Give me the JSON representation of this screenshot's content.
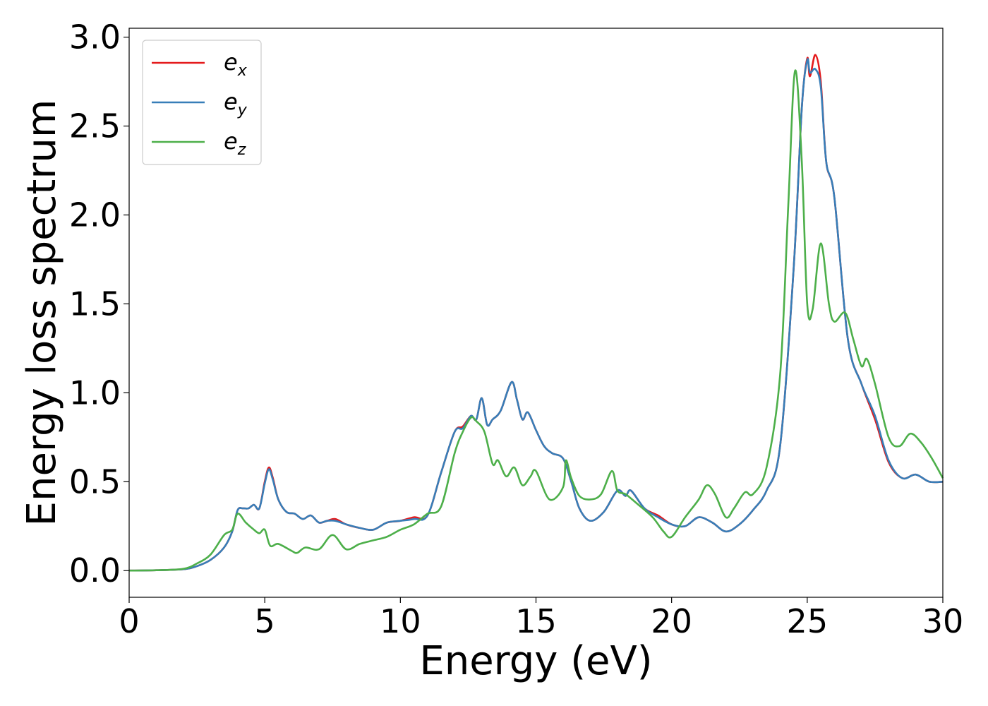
{
  "chart_data": {
    "type": "line",
    "title": "",
    "xlabel": "Energy (eV)",
    "ylabel": "Energy loss spectrum",
    "xlim": [
      0,
      30
    ],
    "ylim": [
      -0.15,
      3.05
    ],
    "xticks": [
      0,
      5,
      10,
      15,
      20,
      25,
      30
    ],
    "xtick_labels": [
      "0",
      "5",
      "10",
      "15",
      "20",
      "25",
      "30"
    ],
    "yticks": [
      0.0,
      0.5,
      1.0,
      1.5,
      2.0,
      2.5,
      3.0
    ],
    "ytick_labels": [
      "0.0",
      "0.5",
      "1.0",
      "1.5",
      "2.0",
      "2.5",
      "3.0"
    ],
    "grid": false,
    "legend_position": "top-left",
    "series": [
      {
        "name": "e_x",
        "legend_main": "e",
        "legend_sub": "x",
        "color": "#e41a1c",
        "points": [
          [
            0,
            0
          ],
          [
            1,
            0.002
          ],
          [
            2,
            0.008
          ],
          [
            2.5,
            0.025
          ],
          [
            3,
            0.06
          ],
          [
            3.5,
            0.13
          ],
          [
            3.8,
            0.22
          ],
          [
            4,
            0.34
          ],
          [
            4.2,
            0.35
          ],
          [
            4.4,
            0.35
          ],
          [
            4.6,
            0.37
          ],
          [
            4.8,
            0.35
          ],
          [
            5,
            0.5
          ],
          [
            5.15,
            0.58
          ],
          [
            5.3,
            0.52
          ],
          [
            5.5,
            0.4
          ],
          [
            5.8,
            0.33
          ],
          [
            6.1,
            0.32
          ],
          [
            6.4,
            0.29
          ],
          [
            6.7,
            0.31
          ],
          [
            7,
            0.27
          ],
          [
            7.3,
            0.28
          ],
          [
            7.6,
            0.29
          ],
          [
            8,
            0.26
          ],
          [
            8.5,
            0.24
          ],
          [
            9,
            0.23
          ],
          [
            9.5,
            0.27
          ],
          [
            10,
            0.28
          ],
          [
            10.5,
            0.3
          ],
          [
            11,
            0.31
          ],
          [
            11.5,
            0.55
          ],
          [
            12,
            0.78
          ],
          [
            12.3,
            0.81
          ],
          [
            12.6,
            0.87
          ],
          [
            12.8,
            0.85
          ],
          [
            13,
            0.97
          ],
          [
            13.2,
            0.82
          ],
          [
            13.4,
            0.85
          ],
          [
            13.7,
            0.9
          ],
          [
            14.1,
            1.06
          ],
          [
            14.3,
            0.96
          ],
          [
            14.5,
            0.85
          ],
          [
            14.7,
            0.89
          ],
          [
            15,
            0.79
          ],
          [
            15.3,
            0.7
          ],
          [
            15.6,
            0.66
          ],
          [
            16,
            0.63
          ],
          [
            16.3,
            0.5
          ],
          [
            16.6,
            0.35
          ],
          [
            17,
            0.28
          ],
          [
            17.5,
            0.33
          ],
          [
            18,
            0.45
          ],
          [
            18.3,
            0.42
          ],
          [
            18.5,
            0.45
          ],
          [
            19,
            0.35
          ],
          [
            19.5,
            0.31
          ],
          [
            20,
            0.26
          ],
          [
            20.5,
            0.25
          ],
          [
            21,
            0.3
          ],
          [
            21.5,
            0.27
          ],
          [
            22,
            0.22
          ],
          [
            22.5,
            0.26
          ],
          [
            23,
            0.34
          ],
          [
            23.5,
            0.45
          ],
          [
            24,
            0.7
          ],
          [
            24.5,
            1.7
          ],
          [
            24.8,
            2.6
          ],
          [
            25,
            2.88
          ],
          [
            25.1,
            2.78
          ],
          [
            25.3,
            2.9
          ],
          [
            25.5,
            2.75
          ],
          [
            25.7,
            2.3
          ],
          [
            26,
            2.1
          ],
          [
            26.5,
            1.3
          ],
          [
            27,
            1.05
          ],
          [
            27.5,
            0.85
          ],
          [
            28,
            0.61
          ],
          [
            28.5,
            0.52
          ],
          [
            29,
            0.54
          ],
          [
            29.5,
            0.5
          ],
          [
            30,
            0.5
          ]
        ]
      },
      {
        "name": "e_y",
        "legend_main": "e",
        "legend_sub": "y",
        "color": "#377eb8",
        "points": [
          [
            0,
            0
          ],
          [
            1,
            0.002
          ],
          [
            2,
            0.008
          ],
          [
            2.5,
            0.025
          ],
          [
            3,
            0.06
          ],
          [
            3.5,
            0.13
          ],
          [
            3.8,
            0.22
          ],
          [
            4,
            0.34
          ],
          [
            4.2,
            0.35
          ],
          [
            4.4,
            0.35
          ],
          [
            4.6,
            0.37
          ],
          [
            4.8,
            0.35
          ],
          [
            5,
            0.49
          ],
          [
            5.15,
            0.57
          ],
          [
            5.3,
            0.51
          ],
          [
            5.5,
            0.4
          ],
          [
            5.8,
            0.33
          ],
          [
            6.1,
            0.32
          ],
          [
            6.4,
            0.29
          ],
          [
            6.7,
            0.31
          ],
          [
            7,
            0.27
          ],
          [
            7.3,
            0.28
          ],
          [
            7.6,
            0.28
          ],
          [
            8,
            0.26
          ],
          [
            8.5,
            0.24
          ],
          [
            9,
            0.23
          ],
          [
            9.5,
            0.27
          ],
          [
            10,
            0.28
          ],
          [
            10.5,
            0.29
          ],
          [
            11,
            0.31
          ],
          [
            11.5,
            0.55
          ],
          [
            12,
            0.78
          ],
          [
            12.3,
            0.8
          ],
          [
            12.6,
            0.87
          ],
          [
            12.8,
            0.85
          ],
          [
            13,
            0.97
          ],
          [
            13.2,
            0.82
          ],
          [
            13.4,
            0.85
          ],
          [
            13.7,
            0.9
          ],
          [
            14.1,
            1.06
          ],
          [
            14.3,
            0.96
          ],
          [
            14.5,
            0.85
          ],
          [
            14.7,
            0.89
          ],
          [
            15,
            0.79
          ],
          [
            15.3,
            0.7
          ],
          [
            15.6,
            0.66
          ],
          [
            16,
            0.63
          ],
          [
            16.3,
            0.5
          ],
          [
            16.6,
            0.35
          ],
          [
            17,
            0.28
          ],
          [
            17.5,
            0.33
          ],
          [
            18,
            0.45
          ],
          [
            18.3,
            0.42
          ],
          [
            18.5,
            0.45
          ],
          [
            19,
            0.35
          ],
          [
            19.5,
            0.3
          ],
          [
            20,
            0.26
          ],
          [
            20.5,
            0.25
          ],
          [
            21,
            0.3
          ],
          [
            21.5,
            0.27
          ],
          [
            22,
            0.22
          ],
          [
            22.5,
            0.26
          ],
          [
            23,
            0.34
          ],
          [
            23.5,
            0.45
          ],
          [
            24,
            0.7
          ],
          [
            24.5,
            1.7
          ],
          [
            24.8,
            2.6
          ],
          [
            25,
            2.87
          ],
          [
            25.1,
            2.8
          ],
          [
            25.3,
            2.82
          ],
          [
            25.5,
            2.72
          ],
          [
            25.7,
            2.3
          ],
          [
            26,
            2.1
          ],
          [
            26.5,
            1.3
          ],
          [
            27,
            1.05
          ],
          [
            27.5,
            0.87
          ],
          [
            28,
            0.62
          ],
          [
            28.5,
            0.52
          ],
          [
            29,
            0.54
          ],
          [
            29.5,
            0.5
          ],
          [
            30,
            0.5
          ]
        ]
      },
      {
        "name": "e_z",
        "legend_main": "e",
        "legend_sub": "z",
        "color": "#4daf4a",
        "points": [
          [
            0,
            0
          ],
          [
            1,
            0.002
          ],
          [
            2,
            0.01
          ],
          [
            2.5,
            0.04
          ],
          [
            3,
            0.09
          ],
          [
            3.5,
            0.2
          ],
          [
            3.8,
            0.23
          ],
          [
            4,
            0.32
          ],
          [
            4.3,
            0.27
          ],
          [
            4.6,
            0.23
          ],
          [
            4.8,
            0.21
          ],
          [
            5,
            0.23
          ],
          [
            5.2,
            0.14
          ],
          [
            5.5,
            0.15
          ],
          [
            6,
            0.11
          ],
          [
            6.2,
            0.1
          ],
          [
            6.5,
            0.13
          ],
          [
            7,
            0.12
          ],
          [
            7.5,
            0.2
          ],
          [
            8,
            0.12
          ],
          [
            8.5,
            0.15
          ],
          [
            9,
            0.17
          ],
          [
            9.5,
            0.19
          ],
          [
            10,
            0.23
          ],
          [
            10.5,
            0.26
          ],
          [
            11,
            0.32
          ],
          [
            11.5,
            0.36
          ],
          [
            12,
            0.66
          ],
          [
            12.3,
            0.78
          ],
          [
            12.6,
            0.86
          ],
          [
            12.8,
            0.84
          ],
          [
            13.1,
            0.78
          ],
          [
            13.4,
            0.6
          ],
          [
            13.6,
            0.62
          ],
          [
            13.9,
            0.53
          ],
          [
            14.2,
            0.58
          ],
          [
            14.5,
            0.48
          ],
          [
            14.8,
            0.53
          ],
          [
            15,
            0.56
          ],
          [
            15.5,
            0.4
          ],
          [
            16,
            0.47
          ],
          [
            16.1,
            0.62
          ],
          [
            16.3,
            0.52
          ],
          [
            16.6,
            0.42
          ],
          [
            17,
            0.4
          ],
          [
            17.4,
            0.43
          ],
          [
            17.8,
            0.56
          ],
          [
            18,
            0.45
          ],
          [
            18.3,
            0.43
          ],
          [
            18.7,
            0.38
          ],
          [
            19.3,
            0.3
          ],
          [
            19.7,
            0.22
          ],
          [
            20,
            0.19
          ],
          [
            20.5,
            0.3
          ],
          [
            21,
            0.4
          ],
          [
            21.3,
            0.48
          ],
          [
            21.6,
            0.43
          ],
          [
            22,
            0.3
          ],
          [
            22.3,
            0.35
          ],
          [
            22.7,
            0.44
          ],
          [
            23,
            0.43
          ],
          [
            23.5,
            0.58
          ],
          [
            24,
            1.1
          ],
          [
            24.3,
            2.05
          ],
          [
            24.55,
            2.81
          ],
          [
            24.8,
            2.3
          ],
          [
            25,
            1.5
          ],
          [
            25.2,
            1.47
          ],
          [
            25.5,
            1.84
          ],
          [
            25.8,
            1.5
          ],
          [
            26,
            1.4
          ],
          [
            26.4,
            1.45
          ],
          [
            26.7,
            1.3
          ],
          [
            27,
            1.15
          ],
          [
            27.2,
            1.19
          ],
          [
            27.5,
            1.05
          ],
          [
            28,
            0.75
          ],
          [
            28.4,
            0.7
          ],
          [
            28.8,
            0.77
          ],
          [
            29.2,
            0.72
          ],
          [
            29.6,
            0.63
          ],
          [
            30,
            0.52
          ]
        ]
      }
    ]
  }
}
